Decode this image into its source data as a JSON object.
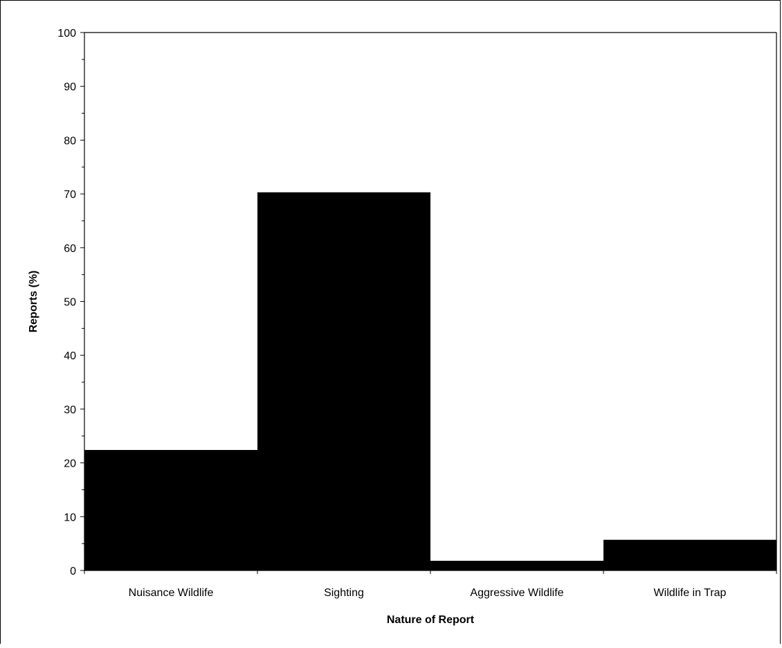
{
  "chart_data": {
    "type": "bar",
    "categories": [
      "Nuisance Wildlife",
      "Sighting",
      "Aggressive Wildlife",
      "Wildlife in Trap"
    ],
    "values": [
      22.4,
      70.3,
      1.8,
      5.7
    ],
    "xlabel": "Nature of Report",
    "ylabel": "Reports (%)",
    "ylim": [
      0,
      100
    ],
    "yticks": [
      "0",
      "10",
      "20",
      "30",
      "40",
      "50",
      "60",
      "70",
      "80",
      "90",
      "100"
    ],
    "grid": false,
    "legend": "none",
    "colors": {
      "bar": "#000000",
      "axis": "#000000",
      "background": "#ffffff"
    }
  }
}
